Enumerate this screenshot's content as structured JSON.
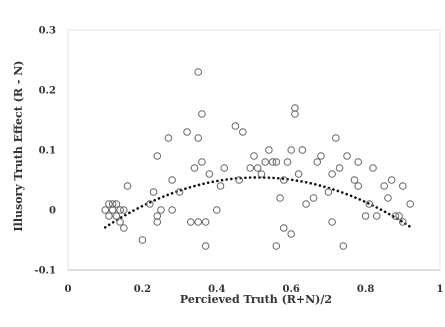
{
  "chart_data": {
    "type": "scatter",
    "title": "",
    "xlabel": "Percieved Truth (R+N)/2",
    "ylabel": "Illusory Truth Effect (R - N)",
    "xlim": [
      0,
      1
    ],
    "ylim": [
      -0.1,
      0.3
    ],
    "x_ticks": [
      "0",
      "0.2",
      "0.4",
      "0.6",
      "0.8",
      "1"
    ],
    "y_ticks": [
      "-0.1",
      "0",
      "0.1",
      "0.2",
      "0.3"
    ],
    "x_tick_values": [
      0,
      0.2,
      0.4,
      0.6,
      0.8,
      1
    ],
    "y_tick_values": [
      -0.1,
      0,
      0.1,
      0.2,
      0.3
    ],
    "grid": false,
    "legend": "none",
    "marker": "open-circle",
    "marker_color": "#666666",
    "trend_color": "#111111",
    "trendline": {
      "style": "dotted",
      "kind": "polynomial-2",
      "x_range": [
        0.1,
        0.92
      ],
      "coefficients": [
        -0.0744,
        0.5036,
        -0.4926
      ]
    },
    "series": [
      {
        "points": [
          [
            0.1,
            0.0
          ],
          [
            0.11,
            0.01
          ],
          [
            0.11,
            -0.01
          ],
          [
            0.12,
            0.0
          ],
          [
            0.12,
            0.01
          ],
          [
            0.13,
            -0.01
          ],
          [
            0.13,
            0.01
          ],
          [
            0.14,
            -0.02
          ],
          [
            0.14,
            0.0
          ],
          [
            0.15,
            0.0
          ],
          [
            0.15,
            -0.03
          ],
          [
            0.16,
            0.04
          ],
          [
            0.2,
            -0.05
          ],
          [
            0.22,
            0.01
          ],
          [
            0.23,
            0.03
          ],
          [
            0.24,
            0.09
          ],
          [
            0.24,
            -0.01
          ],
          [
            0.24,
            -0.02
          ],
          [
            0.25,
            0.0
          ],
          [
            0.27,
            0.12
          ],
          [
            0.28,
            0.05
          ],
          [
            0.28,
            0.0
          ],
          [
            0.3,
            0.03
          ],
          [
            0.32,
            0.13
          ],
          [
            0.33,
            -0.02
          ],
          [
            0.34,
            0.07
          ],
          [
            0.35,
            0.23
          ],
          [
            0.35,
            0.12
          ],
          [
            0.35,
            -0.02
          ],
          [
            0.36,
            0.08
          ],
          [
            0.36,
            0.16
          ],
          [
            0.37,
            -0.06
          ],
          [
            0.37,
            -0.02
          ],
          [
            0.38,
            0.06
          ],
          [
            0.4,
            0.0
          ],
          [
            0.41,
            0.04
          ],
          [
            0.42,
            0.07
          ],
          [
            0.45,
            0.14
          ],
          [
            0.46,
            0.05
          ],
          [
            0.47,
            0.13
          ],
          [
            0.49,
            0.07
          ],
          [
            0.5,
            0.09
          ],
          [
            0.51,
            0.07
          ],
          [
            0.52,
            0.06
          ],
          [
            0.53,
            0.08
          ],
          [
            0.54,
            0.1
          ],
          [
            0.55,
            0.08
          ],
          [
            0.56,
            -0.06
          ],
          [
            0.56,
            0.08
          ],
          [
            0.57,
            0.02
          ],
          [
            0.58,
            -0.03
          ],
          [
            0.58,
            0.05
          ],
          [
            0.59,
            0.08
          ],
          [
            0.6,
            -0.04
          ],
          [
            0.6,
            0.1
          ],
          [
            0.61,
            0.16
          ],
          [
            0.61,
            0.17
          ],
          [
            0.62,
            0.06
          ],
          [
            0.63,
            0.1
          ],
          [
            0.64,
            0.01
          ],
          [
            0.66,
            0.02
          ],
          [
            0.67,
            0.08
          ],
          [
            0.68,
            0.09
          ],
          [
            0.7,
            0.03
          ],
          [
            0.71,
            0.06
          ],
          [
            0.71,
            -0.02
          ],
          [
            0.72,
            0.12
          ],
          [
            0.73,
            0.07
          ],
          [
            0.74,
            -0.06
          ],
          [
            0.75,
            0.09
          ],
          [
            0.77,
            0.05
          ],
          [
            0.78,
            0.08
          ],
          [
            0.78,
            0.04
          ],
          [
            0.8,
            -0.01
          ],
          [
            0.81,
            0.01
          ],
          [
            0.82,
            0.07
          ],
          [
            0.83,
            -0.01
          ],
          [
            0.85,
            0.04
          ],
          [
            0.86,
            0.02
          ],
          [
            0.87,
            0.05
          ],
          [
            0.88,
            -0.01
          ],
          [
            0.89,
            -0.01
          ],
          [
            0.9,
            -0.02
          ],
          [
            0.9,
            0.04
          ],
          [
            0.92,
            0.01
          ]
        ]
      }
    ]
  }
}
